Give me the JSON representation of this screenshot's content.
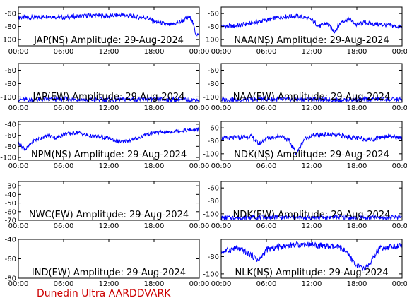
{
  "footer": "Dunedin Ultra AARDDVARK",
  "colors": {
    "trace": "#0000ff",
    "footer": "#cc0000",
    "axes": "#000000"
  },
  "chart_data": [
    {
      "type": "line",
      "title": "JAP(NS) Amplitude: 29-Aug-2024",
      "xticks": [
        "00:00",
        "06:00",
        "12:00",
        "18:00",
        "00:00"
      ],
      "xlim": [
        0,
        24
      ],
      "yticks": [
        -100,
        -80,
        -60
      ],
      "ylim": [
        -110,
        -50
      ],
      "series": [
        {
          "values": [
            [
              0,
              -66
            ],
            [
              2,
              -66
            ],
            [
              4,
              -64
            ],
            [
              6,
              -66
            ],
            [
              8,
              -64
            ],
            [
              10,
              -63
            ],
            [
              12,
              -64
            ],
            [
              13.5,
              -62
            ],
            [
              15,
              -64
            ],
            [
              16,
              -66
            ],
            [
              17,
              -66
            ],
            [
              18,
              -72
            ],
            [
              19,
              -75
            ],
            [
              20,
              -78
            ],
            [
              21,
              -75
            ],
            [
              22,
              -70
            ],
            [
              22.5,
              -66
            ],
            [
              23,
              -68
            ],
            [
              23.5,
              -90
            ],
            [
              24,
              -95
            ]
          ]
        }
      ]
    },
    {
      "type": "line",
      "title": "NAA(NS) Amplitude: 29-Aug-2024",
      "xticks": [
        "00:00",
        "06:00",
        "12:00",
        "18:00",
        "00:00"
      ],
      "xlim": [
        0,
        24
      ],
      "yticks": [
        -100,
        -80,
        -60
      ],
      "ylim": [
        -110,
        -50
      ],
      "series": [
        {
          "values": [
            [
              0,
              -80
            ],
            [
              2,
              -79
            ],
            [
              4,
              -75
            ],
            [
              6,
              -70
            ],
            [
              8,
              -65
            ],
            [
              10,
              -64
            ],
            [
              11,
              -66
            ],
            [
              12,
              -70
            ],
            [
              13,
              -80
            ],
            [
              14,
              -75
            ],
            [
              15,
              -88
            ],
            [
              16,
              -72
            ],
            [
              17,
              -68
            ],
            [
              18,
              -78
            ],
            [
              19,
              -74
            ],
            [
              20,
              -76
            ],
            [
              22,
              -78
            ],
            [
              24,
              -81
            ]
          ]
        }
      ]
    },
    {
      "type": "line",
      "title": "JAP(EW) Amplitude: 29-Aug-2024",
      "xticks": [
        "00:00",
        "06:00",
        "12:00",
        "18:00",
        "00:00"
      ],
      "xlim": [
        0,
        24
      ],
      "yticks": [
        -100,
        -80,
        -60
      ],
      "ylim": [
        -108,
        -50
      ],
      "series": [
        {
          "values": [
            [
              0,
              -104
            ],
            [
              3,
              -104
            ],
            [
              6,
              -103
            ],
            [
              9,
              -104
            ],
            [
              12,
              -104
            ],
            [
              15,
              -103
            ],
            [
              18,
              -104
            ],
            [
              21,
              -104
            ],
            [
              24,
              -104
            ]
          ]
        }
      ]
    },
    {
      "type": "line",
      "title": "NAA(EW) Amplitude: 29-Aug-2024",
      "xticks": [
        "00:00",
        "06:00",
        "12:00",
        "18:00",
        "00:00"
      ],
      "xlim": [
        0,
        24
      ],
      "yticks": [
        -100,
        -80,
        -60
      ],
      "ylim": [
        -108,
        -50
      ],
      "series": [
        {
          "values": [
            [
              0,
              -104
            ],
            [
              3,
              -104
            ],
            [
              6,
              -103
            ],
            [
              9,
              -104
            ],
            [
              12,
              -103
            ],
            [
              15,
              -104
            ],
            [
              18,
              -104
            ],
            [
              21,
              -103
            ],
            [
              24,
              -104
            ]
          ]
        }
      ]
    },
    {
      "type": "line",
      "title": "NPM(NS) Amplitude: 29-Aug-2024",
      "xticks": [
        "00:00",
        "06:00",
        "12:00",
        "18:00",
        "00:00"
      ],
      "xlim": [
        0,
        24
      ],
      "yticks": [
        -100,
        -80,
        -60,
        -40
      ],
      "ylim": [
        -105,
        -35
      ],
      "series": [
        {
          "values": [
            [
              0,
              -75
            ],
            [
              1,
              -85
            ],
            [
              2,
              -70
            ],
            [
              3,
              -65
            ],
            [
              4,
              -60
            ],
            [
              5,
              -65
            ],
            [
              6,
              -58
            ],
            [
              8,
              -55
            ],
            [
              9,
              -60
            ],
            [
              10,
              -62
            ],
            [
              12,
              -65
            ],
            [
              13,
              -70
            ],
            [
              14,
              -72
            ],
            [
              15,
              -68
            ],
            [
              16,
              -65
            ],
            [
              17,
              -58
            ],
            [
              18,
              -55
            ],
            [
              20,
              -54
            ],
            [
              22,
              -51
            ],
            [
              24,
              -50
            ]
          ]
        }
      ]
    },
    {
      "type": "line",
      "title": "NDK(NS) Amplitude: 29-Aug-2024",
      "xticks": [
        "00:00",
        "06:00",
        "12:00",
        "18:00",
        "00:00"
      ],
      "xlim": [
        0,
        24
      ],
      "yticks": [
        -100,
        -80,
        -60
      ],
      "ylim": [
        -110,
        -50
      ],
      "series": [
        {
          "values": [
            [
              0,
              -76
            ],
            [
              2,
              -75
            ],
            [
              4,
              -73
            ],
            [
              5,
              -85
            ],
            [
              6,
              -76
            ],
            [
              8,
              -72
            ],
            [
              9,
              -80
            ],
            [
              10,
              -100
            ],
            [
              11,
              -78
            ],
            [
              12,
              -72
            ],
            [
              14,
              -70
            ],
            [
              16,
              -72
            ],
            [
              18,
              -76
            ],
            [
              20,
              -78
            ],
            [
              22,
              -72
            ],
            [
              24,
              -76
            ]
          ]
        }
      ]
    },
    {
      "type": "line",
      "title": "NWC(EW) Amplitude: 29-Aug-2024",
      "xticks": [
        "00:00",
        "06:00",
        "12:00",
        "18:00",
        "00:00"
      ],
      "xlim": [
        0,
        24
      ],
      "yticks": [
        -70,
        -60,
        -50,
        -40,
        -30
      ],
      "ylim": [
        -70,
        -25
      ],
      "series": []
    },
    {
      "type": "line",
      "title": "NDK(EW) Amplitude: 29-Aug-2024",
      "xticks": [
        "00:00",
        "06:00",
        "12:00",
        "18:00",
        "00:00"
      ],
      "xlim": [
        0,
        24
      ],
      "yticks": [
        -100,
        -80,
        -60
      ],
      "ylim": [
        -110,
        -50
      ],
      "series": [
        {
          "values": [
            [
              0,
              -106
            ],
            [
              3,
              -106
            ],
            [
              6,
              -105
            ],
            [
              9,
              -106
            ],
            [
              12,
              -106
            ],
            [
              15,
              -105
            ],
            [
              18,
              -106
            ],
            [
              21,
              -106
            ],
            [
              24,
              -105
            ]
          ]
        }
      ]
    },
    {
      "type": "line",
      "title": "IND(EW) Amplitude: 29-Aug-2024",
      "xticks": [
        "00:00",
        "06:00",
        "12:00",
        "18:00",
        "00:00"
      ],
      "xlim": [
        0,
        24
      ],
      "yticks": [
        -80,
        -60,
        -40
      ],
      "ylim": [
        -80,
        -40
      ],
      "series": []
    },
    {
      "type": "line",
      "title": "NLK(NS) Amplitude: 29-Aug-2024",
      "xticks": [
        "00:00",
        "06:00",
        "12:00",
        "18:00",
        "00:00"
      ],
      "xlim": [
        0,
        24
      ],
      "yticks": [
        -100,
        -80
      ],
      "ylim": [
        -105,
        -60
      ],
      "series": [
        {
          "values": [
            [
              0,
              -75
            ],
            [
              2,
              -70
            ],
            [
              4,
              -78
            ],
            [
              5,
              -85
            ],
            [
              6,
              -72
            ],
            [
              8,
              -68
            ],
            [
              10,
              -66
            ],
            [
              12,
              -66
            ],
            [
              14,
              -68
            ],
            [
              16,
              -70
            ],
            [
              17,
              -80
            ],
            [
              18,
              -90
            ],
            [
              19,
              -95
            ],
            [
              20,
              -85
            ],
            [
              21,
              -70
            ],
            [
              22,
              -72
            ],
            [
              22.5,
              -68
            ],
            [
              24,
              -68
            ]
          ]
        }
      ]
    }
  ]
}
